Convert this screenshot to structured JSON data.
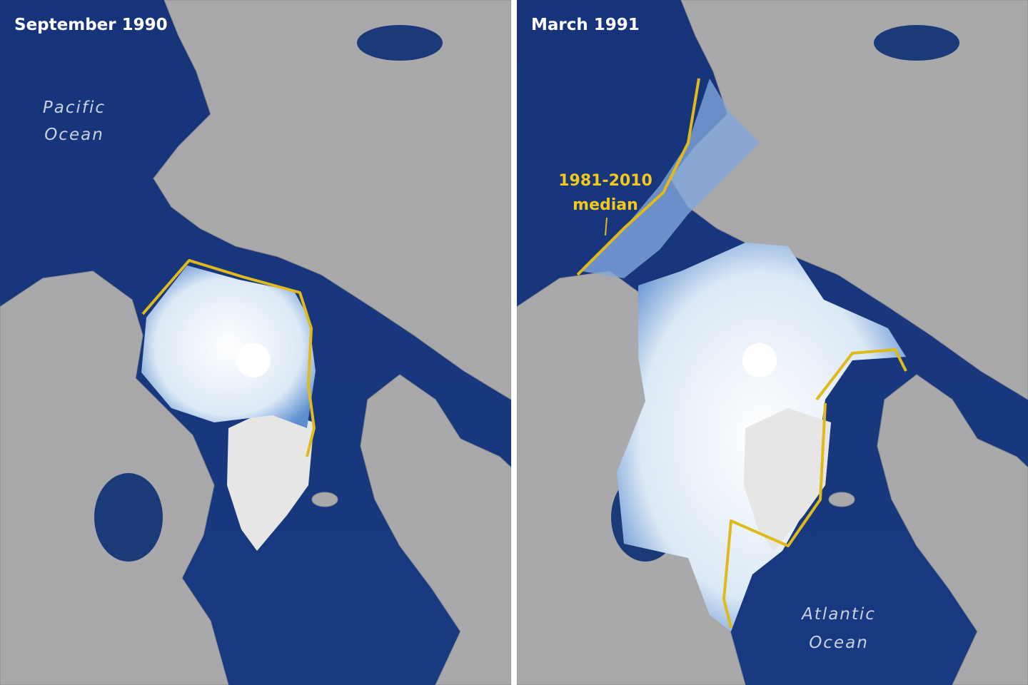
{
  "left_panel": {
    "title": "September 1990",
    "ocean_label": [
      "Pacific",
      "Ocean"
    ]
  },
  "right_panel": {
    "title": "March 1991",
    "median_label": [
      "1981-2010",
      "median"
    ],
    "ocean_label": [
      "Atlantic",
      "Ocean"
    ]
  }
}
